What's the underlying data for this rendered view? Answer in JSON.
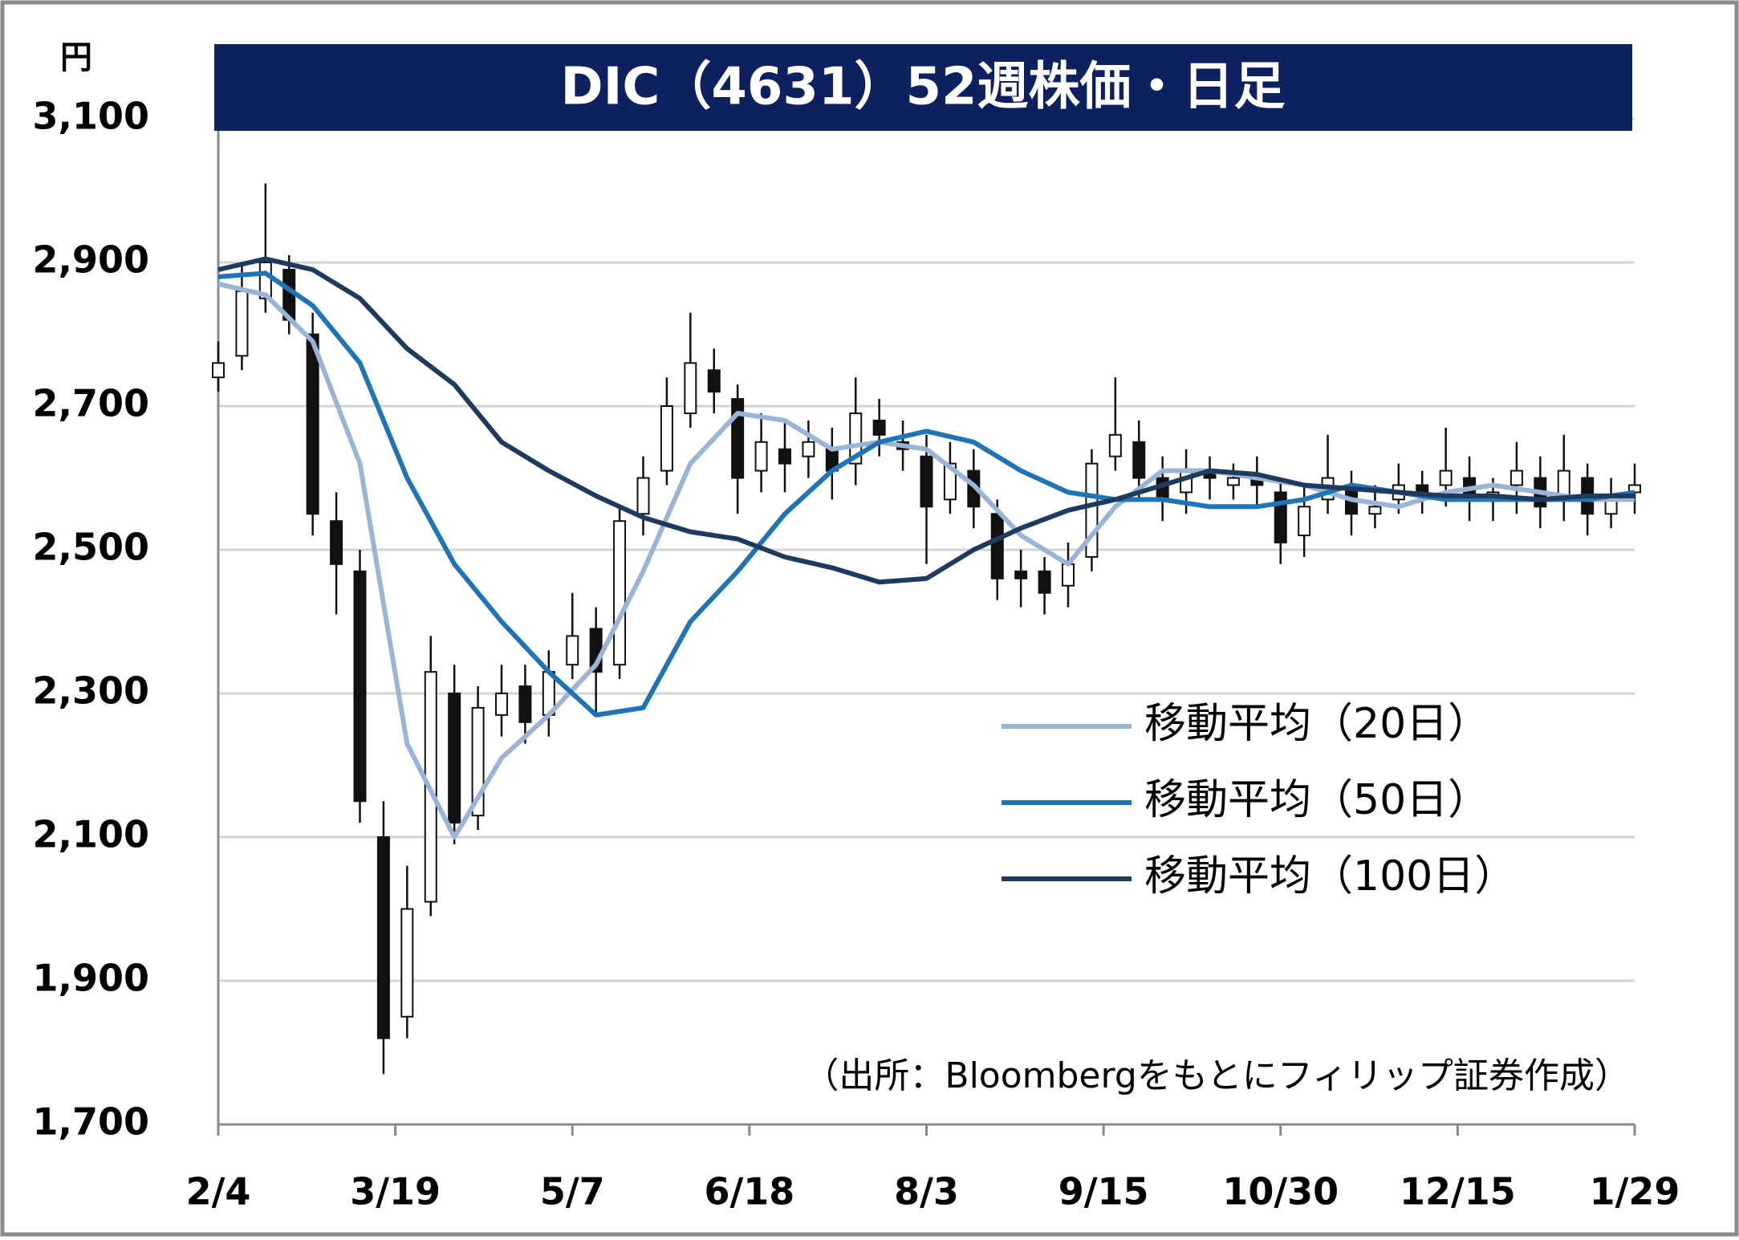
{
  "chart_data": {
    "type": "candlestick",
    "title": "DIC（4631）52週株価・日足",
    "unit_label": "円",
    "source": "（出所：Bloombergをもとにフィリップ証券作成）",
    "ylim": [
      1700,
      3100
    ],
    "yticks": [
      {
        "value": 1700,
        "label": "1,700"
      },
      {
        "value": 1900,
        "label": "1,900"
      },
      {
        "value": 2100,
        "label": "2,100"
      },
      {
        "value": 2300,
        "label": "2,300"
      },
      {
        "value": 2500,
        "label": "2,500"
      },
      {
        "value": 2700,
        "label": "2,700"
      },
      {
        "value": 2900,
        "label": "2,900"
      },
      {
        "value": 3100,
        "label": "3,100"
      }
    ],
    "xlim": [
      0,
      240
    ],
    "xticks": [
      {
        "value": 0,
        "label": "2/4"
      },
      {
        "value": 30,
        "label": "3/19"
      },
      {
        "value": 60,
        "label": "5/7"
      },
      {
        "value": 90,
        "label": "6/18"
      },
      {
        "value": 120,
        "label": "8/3"
      },
      {
        "value": 150,
        "label": "9/15"
      },
      {
        "value": 180,
        "label": "10/30"
      },
      {
        "value": 210,
        "label": "12/15"
      },
      {
        "value": 240,
        "label": "1/29"
      }
    ],
    "grid": true,
    "legend": "right",
    "up_color": "#ffffff",
    "down_color": "#111111",
    "candles": {
      "x": [
        0,
        4,
        8,
        12,
        16,
        20,
        24,
        28,
        32,
        36,
        40,
        44,
        48,
        52,
        56,
        60,
        64,
        68,
        72,
        76,
        80,
        84,
        88,
        92,
        96,
        100,
        104,
        108,
        112,
        116,
        120,
        124,
        128,
        132,
        136,
        140,
        144,
        148,
        152,
        156,
        160,
        164,
        168,
        172,
        176,
        180,
        184,
        188,
        192,
        196,
        200,
        204,
        208,
        212,
        216,
        220,
        224,
        228,
        232,
        236,
        240
      ],
      "open": [
        2740,
        2770,
        2850,
        2890,
        2800,
        2540,
        2470,
        2100,
        1850,
        2010,
        2300,
        2130,
        2270,
        2310,
        2270,
        2340,
        2390,
        2340,
        2550,
        2610,
        2690,
        2750,
        2710,
        2610,
        2640,
        2630,
        2640,
        2620,
        2680,
        2650,
        2630,
        2570,
        2610,
        2550,
        2470,
        2470,
        2450,
        2490,
        2630,
        2650,
        2600,
        2580,
        2610,
        2590,
        2600,
        2580,
        2520,
        2570,
        2590,
        2550,
        2570,
        2590,
        2590,
        2600,
        2570,
        2590,
        2600,
        2570,
        2600,
        2550,
        2580
      ],
      "high": [
        2790,
        2900,
        3010,
        2910,
        2830,
        2580,
        2500,
        2150,
        2060,
        2380,
        2340,
        2310,
        2340,
        2340,
        2360,
        2440,
        2420,
        2560,
        2630,
        2740,
        2830,
        2780,
        2730,
        2690,
        2680,
        2680,
        2670,
        2740,
        2710,
        2680,
        2660,
        2650,
        2640,
        2570,
        2500,
        2490,
        2510,
        2640,
        2740,
        2680,
        2630,
        2640,
        2630,
        2620,
        2630,
        2600,
        2590,
        2660,
        2610,
        2590,
        2620,
        2610,
        2670,
        2630,
        2600,
        2650,
        2630,
        2660,
        2620,
        2600,
        2620
      ],
      "low": [
        2720,
        2750,
        2830,
        2800,
        2520,
        2410,
        2120,
        1770,
        1820,
        1990,
        2090,
        2110,
        2240,
        2230,
        2240,
        2320,
        2270,
        2320,
        2520,
        2590,
        2670,
        2690,
        2550,
        2580,
        2580,
        2600,
        2570,
        2590,
        2630,
        2610,
        2480,
        2550,
        2530,
        2430,
        2420,
        2410,
        2420,
        2470,
        2610,
        2570,
        2540,
        2550,
        2570,
        2570,
        2560,
        2480,
        2490,
        2550,
        2520,
        2530,
        2550,
        2550,
        2560,
        2540,
        2540,
        2550,
        2530,
        2540,
        2520,
        2530,
        2550
      ],
      "close": [
        2760,
        2860,
        2900,
        2820,
        2550,
        2480,
        2150,
        1820,
        2000,
        2330,
        2120,
        2280,
        2300,
        2260,
        2330,
        2380,
        2330,
        2540,
        2600,
        2700,
        2760,
        2720,
        2600,
        2650,
        2620,
        2650,
        2610,
        2690,
        2660,
        2640,
        2560,
        2620,
        2560,
        2460,
        2460,
        2440,
        2480,
        2620,
        2660,
        2600,
        2570,
        2610,
        2600,
        2600,
        2590,
        2510,
        2560,
        2600,
        2550,
        2560,
        2590,
        2580,
        2610,
        2570,
        2580,
        2610,
        2560,
        2610,
        2550,
        2570,
        2590
      ]
    },
    "series_x": [
      0,
      8,
      16,
      24,
      32,
      40,
      48,
      56,
      64,
      72,
      80,
      88,
      96,
      104,
      112,
      120,
      128,
      136,
      144,
      152,
      160,
      168,
      176,
      184,
      192,
      200,
      208,
      216,
      224,
      232,
      240
    ],
    "series": [
      {
        "name": "移動平均（20日）",
        "color": "#9ab4d8",
        "values": [
          2870,
          2855,
          2790,
          2620,
          2230,
          2100,
          2210,
          2270,
          2340,
          2470,
          2620,
          2690,
          2680,
          2640,
          2650,
          2640,
          2590,
          2520,
          2480,
          2560,
          2610,
          2610,
          2600,
          2590,
          2570,
          2560,
          2580,
          2590,
          2580,
          2570,
          2570
        ]
      },
      {
        "name": "移動平均（50日）",
        "color": "#1f73b7",
        "values": [
          2880,
          2885,
          2840,
          2760,
          2600,
          2480,
          2400,
          2330,
          2270,
          2280,
          2400,
          2470,
          2550,
          2610,
          2650,
          2665,
          2650,
          2610,
          2580,
          2570,
          2570,
          2560,
          2560,
          2570,
          2590,
          2580,
          2570,
          2570,
          2570,
          2570,
          2580
        ]
      },
      {
        "name": "移動平均（100日）",
        "color": "#1f3a5f",
        "values": [
          2890,
          2905,
          2890,
          2850,
          2780,
          2730,
          2650,
          2610,
          2575,
          2545,
          2525,
          2515,
          2490,
          2475,
          2455,
          2460,
          2500,
          2530,
          2555,
          2570,
          2590,
          2610,
          2605,
          2590,
          2585,
          2580,
          2575,
          2575,
          2570,
          2575,
          2575
        ]
      }
    ]
  }
}
